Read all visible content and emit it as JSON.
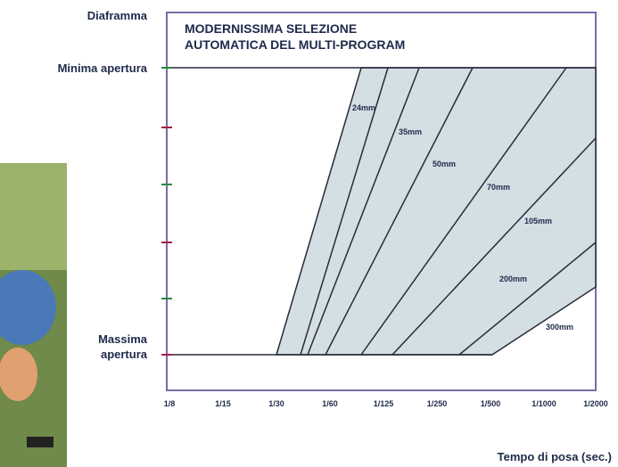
{
  "diagram": {
    "title": [
      "MODERNISSIMA SELEZIONE",
      "AUTOMATICA DEL MULTI-PROGRAM"
    ],
    "y_axis_title": "Diaframma",
    "y_labels": {
      "min": "Minima apertura",
      "max": [
        "Massima",
        "apertura"
      ]
    },
    "x_axis_title": "Tempo di posa (sec.)",
    "x_labels": [
      "1/8",
      "1/15",
      "1/30",
      "1/60",
      "1/125",
      "1/250",
      "1/500",
      "1/1000",
      "1/2000"
    ],
    "focal_labels": [
      "24mm",
      "35mm",
      "50mm",
      "70mm",
      "105mm",
      "200mm",
      "300mm"
    ]
  }
}
